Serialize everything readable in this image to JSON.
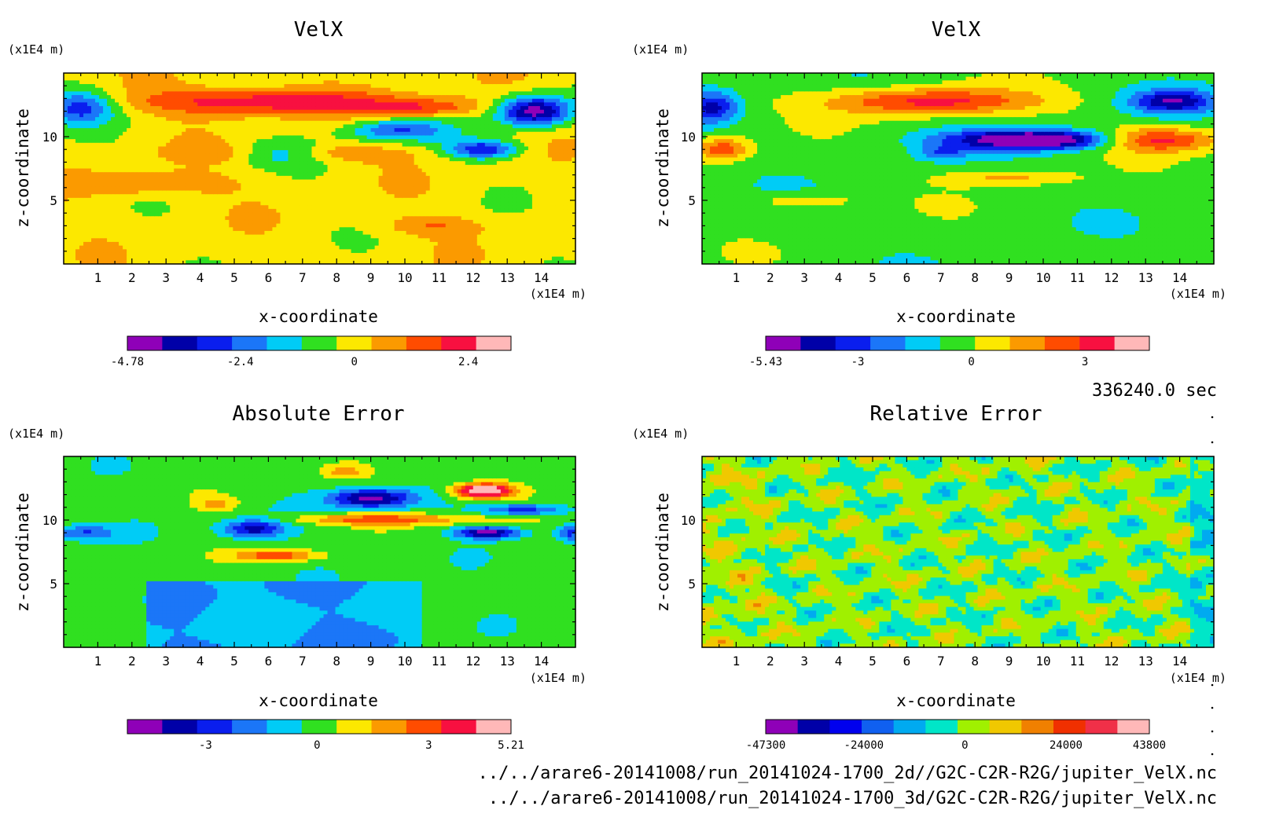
{
  "time_label": "336240.0 sec",
  "footer": {
    "line1": "../../arare6-20141008/run_20141024-1700_2d//G2C-C2R-R2G/jupiter_VelX.nc",
    "line2": "../../arare6-20141008/run_20141024-1700_3d/G2C-C2R-R2G/jupiter_VelX.nc"
  },
  "chart_data": [
    {
      "type": "heatmap",
      "title": "VelX",
      "xlabel": "x-coordinate",
      "ylabel": "z-coordinate",
      "x_unit": "(x1E4 m)",
      "y_unit": "(x1E4 m)",
      "xlim": [
        0,
        15
      ],
      "ylim": [
        0,
        15
      ],
      "x_ticks": [
        "1",
        "2",
        "3",
        "4",
        "5",
        "6",
        "7",
        "8",
        "9",
        "10",
        "11",
        "12",
        "13",
        "14"
      ],
      "y_ticks": [
        "5",
        "10"
      ],
      "colorbar": {
        "min": -4.78,
        "max": 3.3,
        "tick_labels": [
          "-4.78",
          "-2.4",
          "0",
          "2.4"
        ],
        "tick_values": [
          -4.78,
          -2.4,
          0,
          2.4
        ],
        "colors": [
          "#8f00b8",
          "#0000a8",
          "#0a1eee",
          "#1b76f8",
          "#00ccf6",
          "#30e020",
          "#fce800",
          "#fb9a00",
          "#ff4c00",
          "#f81040",
          "#ffb8b8"
        ]
      }
    },
    {
      "type": "heatmap",
      "title": "VelX",
      "xlabel": "x-coordinate",
      "ylabel": "z-coordinate",
      "x_unit": "(x1E4 m)",
      "y_unit": "(x1E4 m)",
      "xlim": [
        0,
        15
      ],
      "ylim": [
        0,
        15
      ],
      "x_ticks": [
        "1",
        "2",
        "3",
        "4",
        "5",
        "6",
        "7",
        "8",
        "9",
        "10",
        "11",
        "12",
        "13",
        "14"
      ],
      "y_ticks": [
        "5",
        "10"
      ],
      "colorbar": {
        "min": -5.43,
        "max": 4.7,
        "tick_labels": [
          "-5.43",
          "-3",
          "0",
          "3"
        ],
        "tick_values": [
          -5.43,
          -3,
          0,
          3
        ],
        "colors": [
          "#8f00b8",
          "#0000a8",
          "#0a1eee",
          "#1b76f8",
          "#00ccf6",
          "#30e020",
          "#fce800",
          "#fb9a00",
          "#ff4c00",
          "#f81040",
          "#ffb8b8"
        ]
      }
    },
    {
      "type": "heatmap",
      "title": "Absolute Error",
      "xlabel": "x-coordinate",
      "ylabel": "z-coordinate",
      "x_unit": "(x1E4 m)",
      "y_unit": "(x1E4 m)",
      "xlim": [
        0,
        15
      ],
      "ylim": [
        0,
        15
      ],
      "x_ticks": [
        "1",
        "2",
        "3",
        "4",
        "5",
        "6",
        "7",
        "8",
        "9",
        "10",
        "11",
        "12",
        "13",
        "14"
      ],
      "y_ticks": [
        "5",
        "10"
      ],
      "colorbar": {
        "min": -5.1,
        "max": 5.21,
        "tick_labels": [
          "-3",
          "0",
          "3",
          "5.21"
        ],
        "tick_values": [
          -3,
          0,
          3,
          5.21
        ],
        "colors": [
          "#8f00b8",
          "#0000a8",
          "#0a1eee",
          "#1b76f8",
          "#00ccf6",
          "#30e020",
          "#fce800",
          "#fb9a00",
          "#ff4c00",
          "#f81040",
          "#ffb8b8"
        ]
      }
    },
    {
      "type": "heatmap",
      "title": "Relative Error",
      "xlabel": "x-coordinate",
      "ylabel": "z-coordinate",
      "x_unit": "(x1E4 m)",
      "y_unit": "(x1E4 m)",
      "xlim": [
        0,
        15
      ],
      "ylim": [
        0,
        15
      ],
      "x_ticks": [
        "1",
        "2",
        "3",
        "4",
        "5",
        "6",
        "7",
        "8",
        "9",
        "10",
        "11",
        "12",
        "13",
        "14"
      ],
      "y_ticks": [
        "5",
        "10"
      ],
      "colorbar": {
        "min": -47300,
        "max": 43800,
        "tick_labels": [
          "-47300",
          "-24000",
          "0",
          "24000",
          "43800"
        ],
        "tick_values": [
          -47300,
          -24000,
          0,
          24000,
          43800
        ],
        "colors": [
          "#8f00b8",
          "#0000a8",
          "#0000ee",
          "#1060f0",
          "#00aaf0",
          "#00e6c8",
          "#a0f000",
          "#f0c800",
          "#f08000",
          "#f03000",
          "#f03048",
          "#ffb8b8"
        ]
      }
    }
  ]
}
